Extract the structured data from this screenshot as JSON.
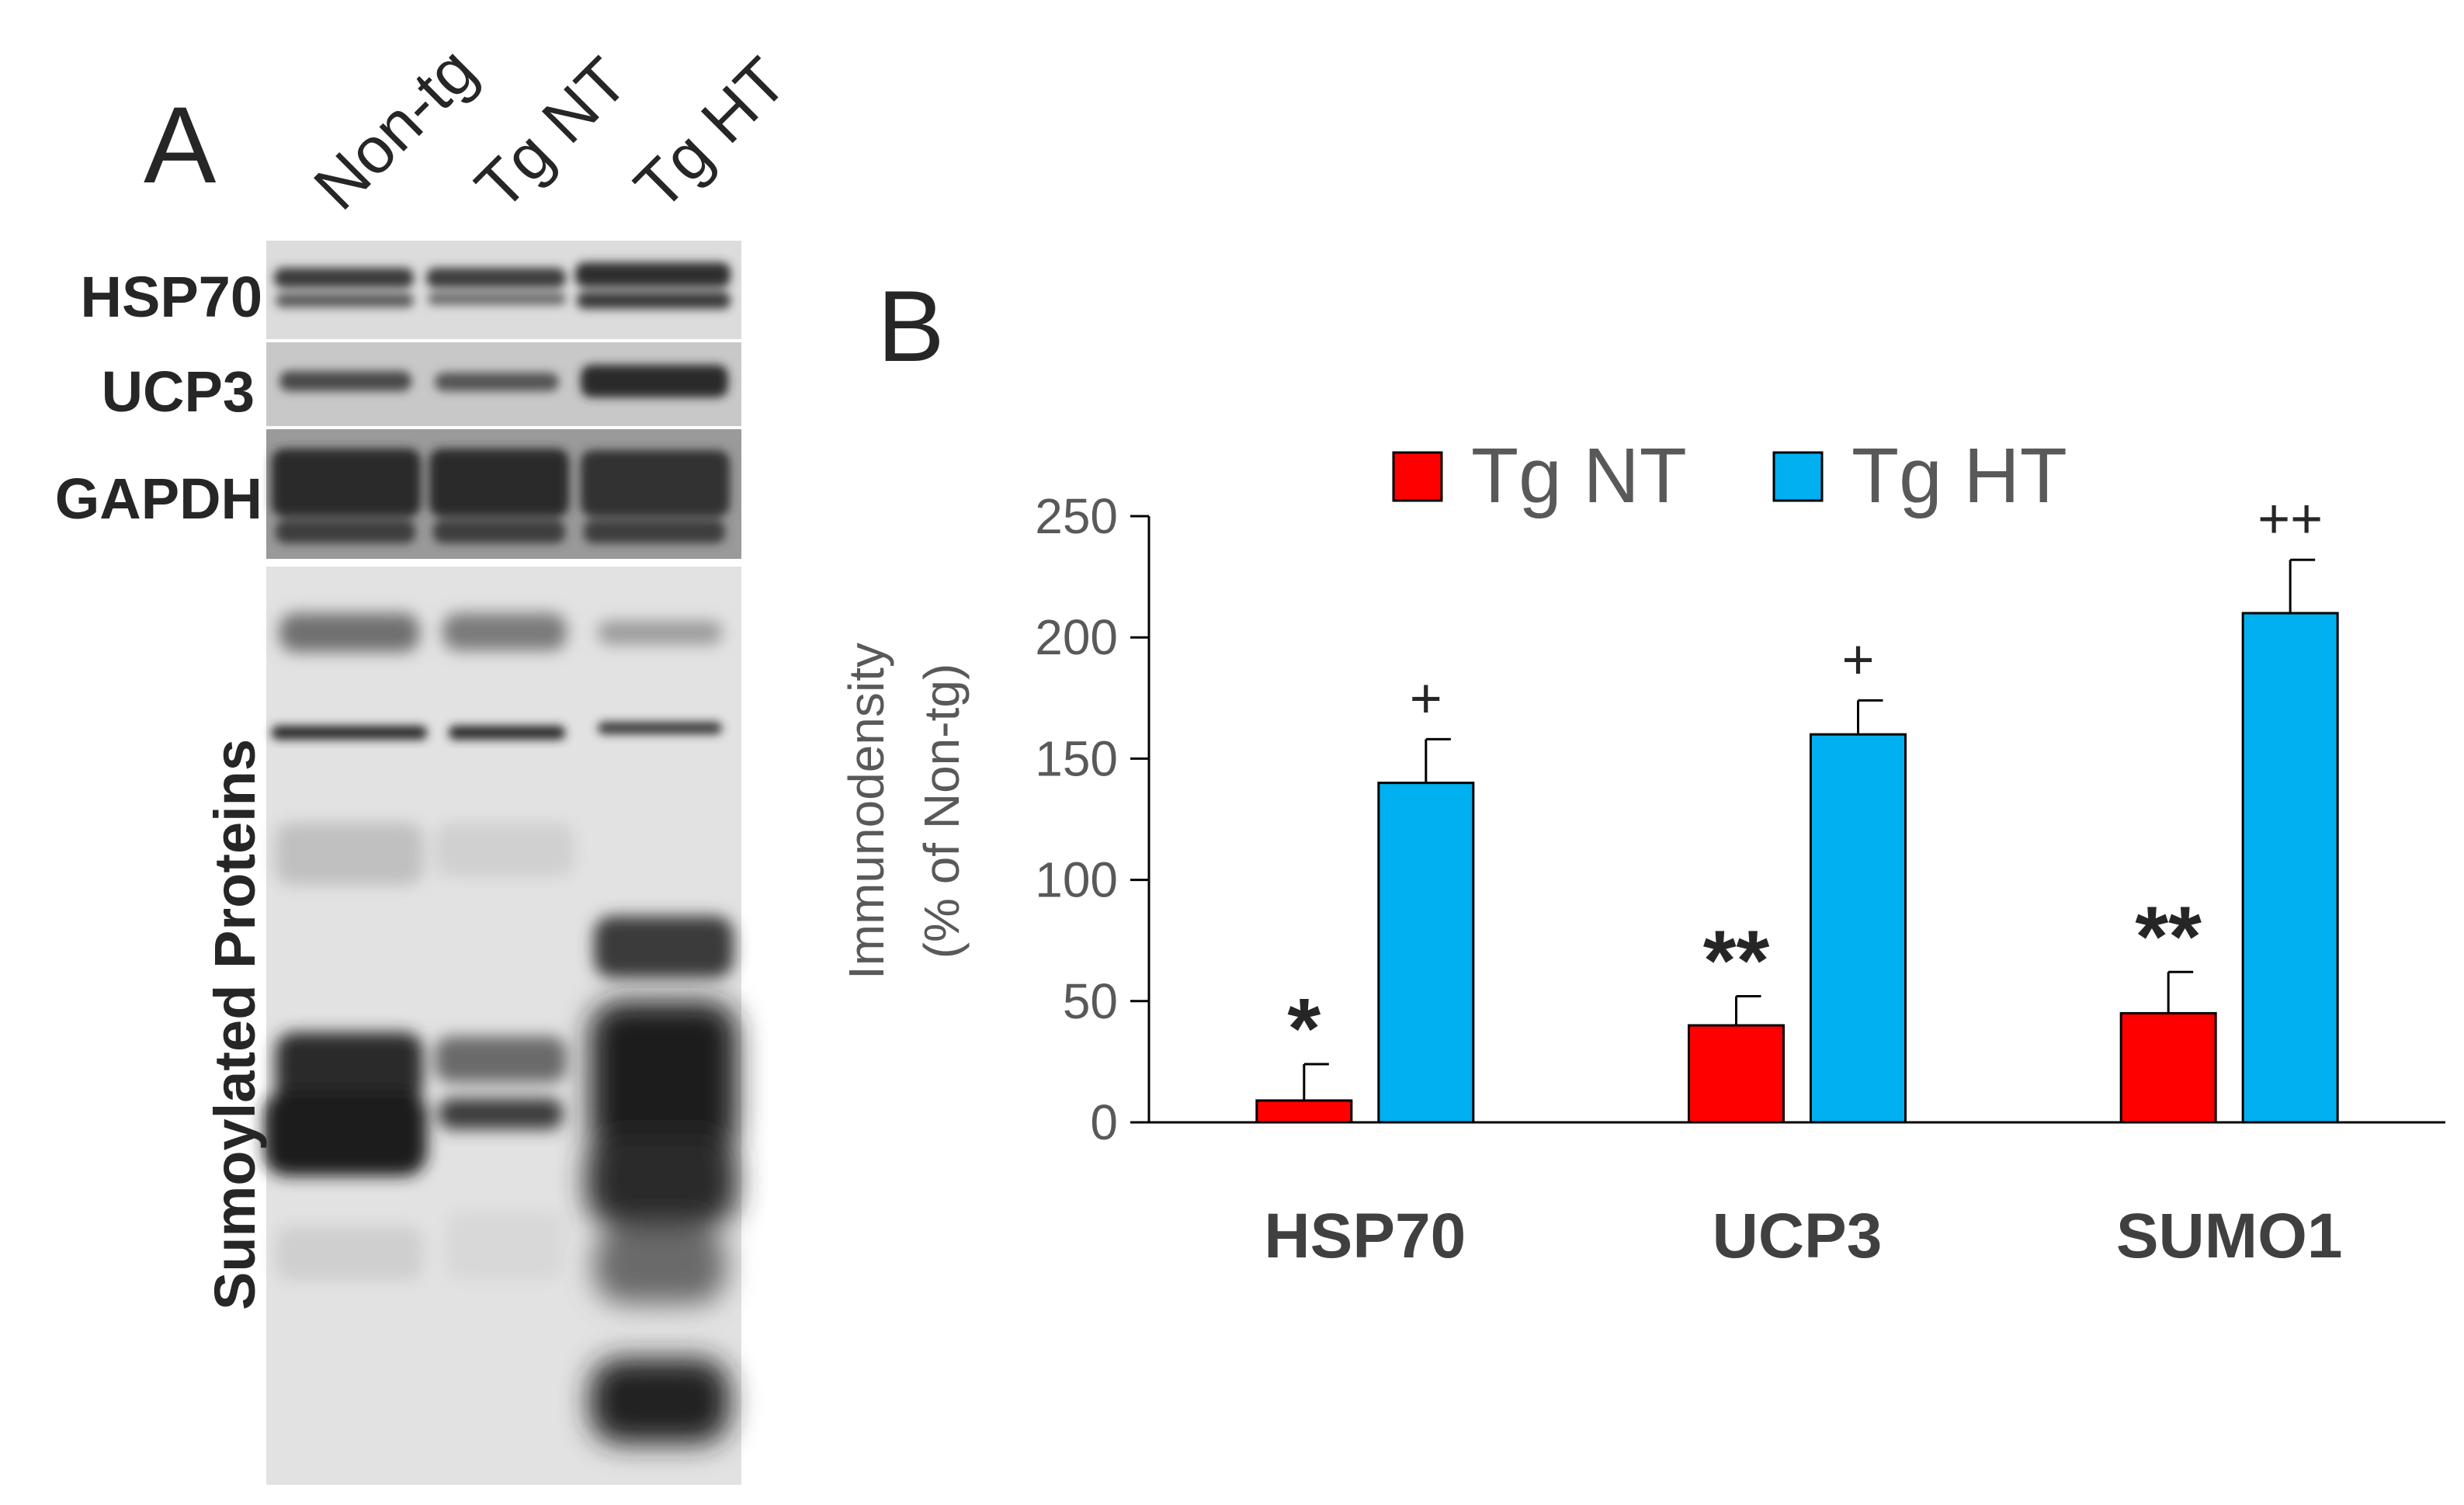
{
  "panel_a": {
    "letter": "A",
    "lanes": [
      "Non-tg",
      "Tg NT",
      "Tg HT"
    ],
    "blots": [
      "HSP70",
      "UCP3",
      "GAPDH",
      "Sumoylated Proteins"
    ]
  },
  "panel_b": {
    "letter": "B"
  },
  "colors": {
    "tg_nt": "#ff0000",
    "tg_ht": "#00b0f0",
    "axis_text": "#595959",
    "label_text": "#404040"
  },
  "chart_data": {
    "type": "bar",
    "categories": [
      "HSP70",
      "UCP3",
      "SUMO1"
    ],
    "ylabel_lines": [
      "Immunodensity",
      "(% of Non-tg)"
    ],
    "ylim": [
      0,
      250
    ],
    "yticks": [
      "0",
      "50",
      "100",
      "150",
      "200",
      "250"
    ],
    "legend_position": "top",
    "series": [
      {
        "name": "Tg NT",
        "values": [
          9,
          40,
          45
        ],
        "errors": [
          15,
          12,
          17
        ],
        "annotations": [
          "*",
          "**",
          "**"
        ]
      },
      {
        "name": "Tg HT",
        "values": [
          140,
          160,
          210
        ],
        "errors": [
          18,
          14,
          22
        ],
        "annotations": [
          "+",
          "+",
          "++"
        ]
      }
    ]
  }
}
